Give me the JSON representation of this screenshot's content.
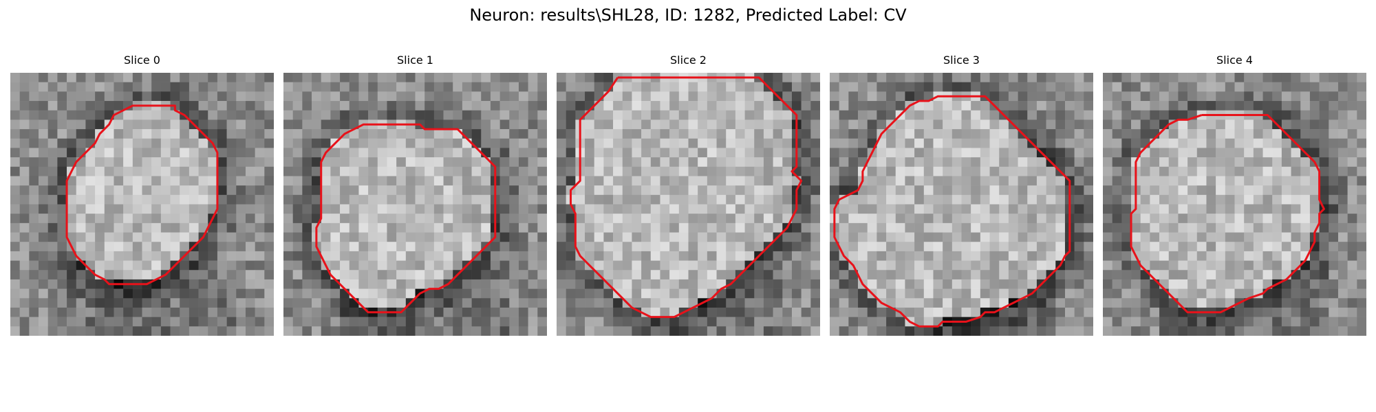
{
  "figure": {
    "title": "Neuron: results\\SHL28, ID: 1282, Predicted Label: CV"
  },
  "panels": [
    {
      "title": "Slice 0",
      "contour": [
        [
          13.5,
          3.5
        ],
        [
          17.5,
          3.5
        ],
        [
          17.5,
          4.0
        ],
        [
          18.5,
          4.5
        ],
        [
          19.5,
          5.5
        ],
        [
          20.5,
          6.5
        ],
        [
          21.5,
          7.5
        ],
        [
          22.0,
          8.5
        ],
        [
          22.0,
          9.5
        ],
        [
          22.0,
          10.5
        ],
        [
          22.0,
          11.5
        ],
        [
          22.0,
          12.5
        ],
        [
          22.0,
          13.5
        ],
        [
          22.0,
          14.5
        ],
        [
          21.5,
          15.5
        ],
        [
          21.0,
          16.5
        ],
        [
          20.5,
          17.5
        ],
        [
          19.5,
          18.5
        ],
        [
          18.5,
          19.5
        ],
        [
          17.5,
          20.5
        ],
        [
          16.5,
          21.5
        ],
        [
          15.5,
          22.0
        ],
        [
          14.5,
          22.5
        ],
        [
          12.5,
          22.5
        ],
        [
          10.5,
          22.5
        ],
        [
          10.0,
          22.0
        ],
        [
          9.0,
          21.5
        ],
        [
          8.0,
          20.5
        ],
        [
          7.0,
          19.5
        ],
        [
          6.5,
          18.5
        ],
        [
          6.0,
          17.5
        ],
        [
          6.0,
          16.5
        ],
        [
          6.0,
          15.5
        ],
        [
          6.0,
          14.5
        ],
        [
          6.0,
          13.5
        ],
        [
          6.0,
          12.5
        ],
        [
          6.0,
          11.5
        ],
        [
          6.5,
          10.5
        ],
        [
          7.0,
          9.5
        ],
        [
          8.0,
          8.5
        ],
        [
          9.0,
          7.5
        ],
        [
          9.5,
          6.5
        ],
        [
          10.5,
          5.5
        ],
        [
          11.0,
          4.5
        ],
        [
          12.0,
          4.0
        ],
        [
          13.0,
          3.5
        ],
        [
          13.5,
          3.5
        ]
      ]
    },
    {
      "title": "Slice 1",
      "contour": [
        [
          9.5,
          5.5
        ],
        [
          14.5,
          5.5
        ],
        [
          15.0,
          6.0
        ],
        [
          18.5,
          6.0
        ],
        [
          19.5,
          7.0
        ],
        [
          20.5,
          8.0
        ],
        [
          21.5,
          9.0
        ],
        [
          22.5,
          10.0
        ],
        [
          22.5,
          11.5
        ],
        [
          22.5,
          12.5
        ],
        [
          22.5,
          13.5
        ],
        [
          22.5,
          14.5
        ],
        [
          22.5,
          15.5
        ],
        [
          22.5,
          16.5
        ],
        [
          22.5,
          17.5
        ],
        [
          21.5,
          18.5
        ],
        [
          20.5,
          19.5
        ],
        [
          19.5,
          20.5
        ],
        [
          18.5,
          21.5
        ],
        [
          17.5,
          22.5
        ],
        [
          16.5,
          23.0
        ],
        [
          15.5,
          23.0
        ],
        [
          14.5,
          23.5
        ],
        [
          13.5,
          24.5
        ],
        [
          12.5,
          25.5
        ],
        [
          10.0,
          25.5
        ],
        [
          9.0,
          25.5
        ],
        [
          8.0,
          24.5
        ],
        [
          7.0,
          23.5
        ],
        [
          6.0,
          22.5
        ],
        [
          5.0,
          21.5
        ],
        [
          4.5,
          20.5
        ],
        [
          4.0,
          19.5
        ],
        [
          3.5,
          18.5
        ],
        [
          3.5,
          17.5
        ],
        [
          3.5,
          16.5
        ],
        [
          4.0,
          15.5
        ],
        [
          4.0,
          14.5
        ],
        [
          4.0,
          13.5
        ],
        [
          4.0,
          12.5
        ],
        [
          4.0,
          11.5
        ],
        [
          4.0,
          10.5
        ],
        [
          4.0,
          9.5
        ],
        [
          4.5,
          8.5
        ],
        [
          5.5,
          7.5
        ],
        [
          6.5,
          6.5
        ],
        [
          7.5,
          6.0
        ],
        [
          8.5,
          5.5
        ],
        [
          9.5,
          5.5
        ]
      ]
    },
    {
      "title": "Slice 2",
      "contour": [
        [
          6.5,
          0.5
        ],
        [
          21.5,
          0.5
        ],
        [
          22.5,
          1.5
        ],
        [
          23.5,
          2.5
        ],
        [
          24.5,
          3.5
        ],
        [
          25.5,
          4.5
        ],
        [
          25.5,
          6.0
        ],
        [
          25.5,
          8.0
        ],
        [
          25.5,
          10.0
        ],
        [
          25.0,
          10.5
        ],
        [
          26.0,
          11.5
        ],
        [
          25.5,
          12.5
        ],
        [
          25.5,
          14.5
        ],
        [
          25.0,
          15.5
        ],
        [
          24.5,
          16.5
        ],
        [
          23.5,
          17.5
        ],
        [
          22.5,
          18.5
        ],
        [
          21.5,
          19.5
        ],
        [
          20.5,
          20.5
        ],
        [
          19.5,
          21.5
        ],
        [
          18.5,
          22.5
        ],
        [
          17.5,
          23.0
        ],
        [
          16.5,
          24.0
        ],
        [
          15.5,
          24.5
        ],
        [
          14.5,
          25.0
        ],
        [
          13.5,
          25.5
        ],
        [
          12.5,
          26.0
        ],
        [
          10.0,
          26.0
        ],
        [
          9.0,
          25.5
        ],
        [
          8.0,
          25.0
        ],
        [
          7.5,
          24.5
        ],
        [
          6.5,
          23.5
        ],
        [
          5.5,
          22.5
        ],
        [
          4.5,
          21.5
        ],
        [
          3.5,
          20.5
        ],
        [
          2.5,
          19.5
        ],
        [
          2.0,
          18.5
        ],
        [
          2.0,
          17.5
        ],
        [
          2.0,
          15.0
        ],
        [
          1.5,
          14.0
        ],
        [
          1.5,
          12.5
        ],
        [
          2.5,
          11.5
        ],
        [
          2.5,
          9.5
        ],
        [
          2.5,
          7.5
        ],
        [
          2.5,
          5.0
        ],
        [
          3.5,
          4.0
        ],
        [
          4.5,
          3.0
        ],
        [
          5.5,
          2.0
        ],
        [
          6.5,
          0.5
        ]
      ]
    },
    {
      "title": "Slice 3",
      "contour": [
        [
          12.5,
          2.5
        ],
        [
          16.5,
          2.5
        ],
        [
          17.5,
          3.5
        ],
        [
          18.5,
          4.5
        ],
        [
          19.5,
          5.5
        ],
        [
          20.5,
          6.5
        ],
        [
          21.5,
          7.5
        ],
        [
          22.5,
          8.5
        ],
        [
          23.5,
          9.5
        ],
        [
          24.5,
          10.5
        ],
        [
          25.5,
          11.5
        ],
        [
          25.5,
          13.0
        ],
        [
          25.5,
          15.0
        ],
        [
          25.5,
          17.0
        ],
        [
          25.5,
          19.0
        ],
        [
          25.0,
          19.5
        ],
        [
          24.5,
          20.5
        ],
        [
          23.5,
          21.5
        ],
        [
          22.5,
          22.5
        ],
        [
          21.5,
          23.5
        ],
        [
          20.5,
          24.0
        ],
        [
          19.5,
          24.5
        ],
        [
          18.5,
          25.0
        ],
        [
          17.5,
          25.5
        ],
        [
          16.5,
          25.5
        ],
        [
          16.0,
          26.0
        ],
        [
          14.5,
          26.5
        ],
        [
          13.0,
          26.5
        ],
        [
          12.0,
          26.5
        ],
        [
          11.5,
          27.0
        ],
        [
          9.5,
          27.0
        ],
        [
          8.5,
          26.5
        ],
        [
          7.5,
          25.5
        ],
        [
          6.5,
          25.0
        ],
        [
          5.5,
          24.5
        ],
        [
          4.5,
          23.5
        ],
        [
          3.5,
          22.5
        ],
        [
          3.0,
          21.5
        ],
        [
          2.5,
          20.5
        ],
        [
          1.5,
          19.5
        ],
        [
          1.0,
          18.5
        ],
        [
          0.5,
          17.5
        ],
        [
          0.5,
          16.5
        ],
        [
          0.5,
          15.5
        ],
        [
          0.5,
          14.5
        ],
        [
          1.0,
          13.5
        ],
        [
          2.0,
          13.0
        ],
        [
          3.0,
          12.5
        ],
        [
          3.5,
          11.5
        ],
        [
          3.5,
          10.5
        ],
        [
          4.0,
          9.5
        ],
        [
          4.5,
          8.5
        ],
        [
          5.0,
          7.5
        ],
        [
          5.5,
          6.5
        ],
        [
          6.5,
          5.5
        ],
        [
          7.5,
          4.5
        ],
        [
          8.5,
          3.5
        ],
        [
          9.5,
          3.0
        ],
        [
          10.5,
          3.0
        ],
        [
          11.5,
          2.5
        ],
        [
          12.5,
          2.5
        ]
      ]
    },
    {
      "title": "Slice 4",
      "contour": [
        [
          10.5,
          4.5
        ],
        [
          17.5,
          4.5
        ],
        [
          18.5,
          5.5
        ],
        [
          19.5,
          6.5
        ],
        [
          20.5,
          7.5
        ],
        [
          21.5,
          8.5
        ],
        [
          22.5,
          9.5
        ],
        [
          23.0,
          10.5
        ],
        [
          23.0,
          11.5
        ],
        [
          23.0,
          12.5
        ],
        [
          23.0,
          13.5
        ],
        [
          23.5,
          14.5
        ],
        [
          23.0,
          15.0
        ],
        [
          23.0,
          16.0
        ],
        [
          22.5,
          17.0
        ],
        [
          22.5,
          18.0
        ],
        [
          22.0,
          19.0
        ],
        [
          21.5,
          20.0
        ],
        [
          20.5,
          21.0
        ],
        [
          19.5,
          22.0
        ],
        [
          18.5,
          22.5
        ],
        [
          17.5,
          23.0
        ],
        [
          17.0,
          23.5
        ],
        [
          15.5,
          24.0
        ],
        [
          14.5,
          24.5
        ],
        [
          13.5,
          25.0
        ],
        [
          12.5,
          25.5
        ],
        [
          10.5,
          25.5
        ],
        [
          9.0,
          25.5
        ],
        [
          8.0,
          24.5
        ],
        [
          7.0,
          23.5
        ],
        [
          6.0,
          22.5
        ],
        [
          5.0,
          21.5
        ],
        [
          4.0,
          20.5
        ],
        [
          3.5,
          19.5
        ],
        [
          3.0,
          18.5
        ],
        [
          3.0,
          17.5
        ],
        [
          3.0,
          16.0
        ],
        [
          3.0,
          15.0
        ],
        [
          3.5,
          14.5
        ],
        [
          3.5,
          13.5
        ],
        [
          3.5,
          12.5
        ],
        [
          3.5,
          11.5
        ],
        [
          3.5,
          10.5
        ],
        [
          3.5,
          9.5
        ],
        [
          4.0,
          8.5
        ],
        [
          5.0,
          7.5
        ],
        [
          6.0,
          6.5
        ],
        [
          7.0,
          5.5
        ],
        [
          8.0,
          5.0
        ],
        [
          9.0,
          5.0
        ],
        [
          10.5,
          4.5
        ]
      ]
    }
  ]
}
